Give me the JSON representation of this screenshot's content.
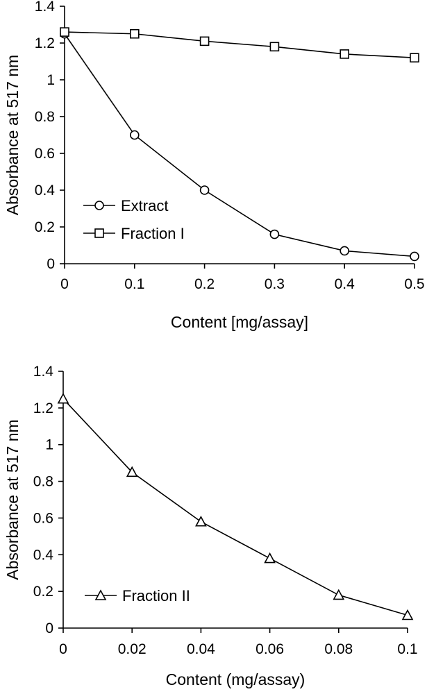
{
  "chart_data": [
    {
      "type": "line",
      "xlabel": "Content [mg/assay]",
      "ylabel": "Absorbance at 517 nm",
      "xlim": [
        0,
        0.5
      ],
      "ylim": [
        0,
        1.4
      ],
      "x_ticks": [
        "0",
        "0.1",
        "0.2",
        "0.3",
        "0.4",
        "0.5"
      ],
      "y_ticks": [
        "0",
        "0.2",
        "0.4",
        "0.6",
        "0.8",
        "1",
        "1.2",
        "1.4"
      ],
      "grid": false,
      "legend_position": "lower-left",
      "x": [
        0,
        0.1,
        0.2,
        0.3,
        0.4,
        0.5
      ],
      "series": [
        {
          "name": "Extract",
          "marker": "circle",
          "values": [
            1.25,
            0.7,
            0.4,
            0.16,
            0.07,
            0.04
          ]
        },
        {
          "name": "Fraction I",
          "marker": "square",
          "values": [
            1.26,
            1.25,
            1.21,
            1.18,
            1.14,
            1.12
          ]
        }
      ]
    },
    {
      "type": "line",
      "xlabel": "Content (mg/assay)",
      "ylabel": "Absorbance at 517 nm",
      "xlim": [
        0,
        0.1
      ],
      "ylim": [
        0,
        1.4
      ],
      "x_ticks": [
        "0",
        "0.02",
        "0.04",
        "0.06",
        "0.08",
        "0.1"
      ],
      "y_ticks": [
        "0",
        "0.2",
        "0.4",
        "0.6",
        "0.8",
        "1",
        "1.2",
        "1.4"
      ],
      "grid": false,
      "legend_position": "lower-left",
      "x": [
        0,
        0.02,
        0.04,
        0.06,
        0.08,
        0.1
      ],
      "series": [
        {
          "name": "Fraction II",
          "marker": "triangle",
          "values": [
            1.25,
            0.85,
            0.58,
            0.38,
            0.18,
            0.07
          ]
        }
      ]
    }
  ]
}
